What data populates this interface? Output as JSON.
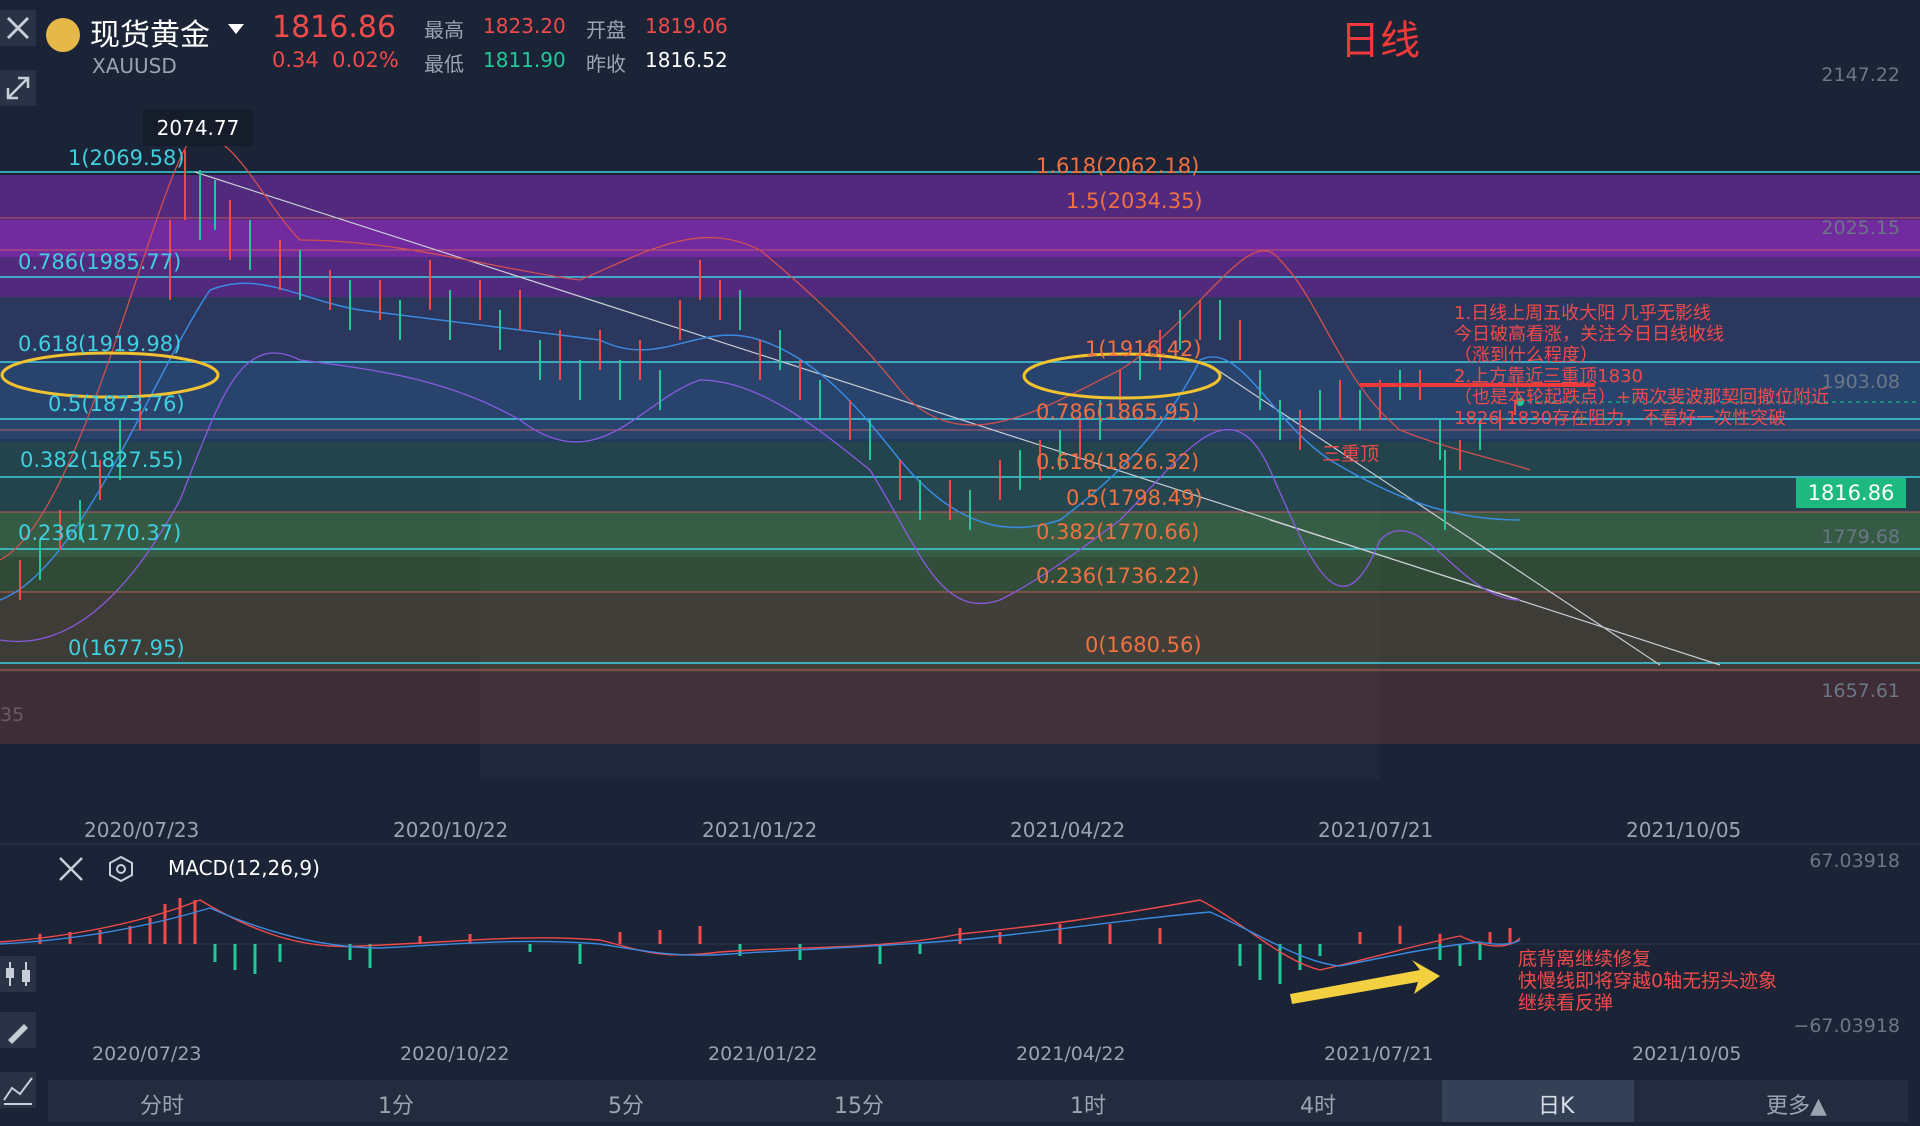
{
  "header": {
    "symbol_name": "现货黄金",
    "symbol_code": "XAUUSD",
    "last_price": "1816.86",
    "change": "0.34",
    "change_pct": "0.02%",
    "high_label": "最高",
    "high_value": "1823.20",
    "open_label": "开盘",
    "open_value": "1819.06",
    "low_label": "最低",
    "low_value": "1811.90",
    "prev_close_label": "昨收",
    "prev_close_value": "1816.52",
    "timeframe_title": "日线"
  },
  "price_axis": [
    "2147.22",
    "2025.15",
    "1903.08",
    "1779.68",
    "1657.61"
  ],
  "left_cut_label": "35",
  "high_tooltip": "2074.77",
  "current_price_tag": "1816.86",
  "fib_left": [
    {
      "label": "1(2069.58)"
    },
    {
      "label": "0.786(1985.77)"
    },
    {
      "label": "0.618(1919.98)"
    },
    {
      "label": "0.5(1873.76)"
    },
    {
      "label": "0.382(1827.55)"
    },
    {
      "label": "0.236(1770.37)"
    },
    {
      "label": "0(1677.95)"
    }
  ],
  "fib_right": [
    {
      "label": "1.618(2062.18)"
    },
    {
      "label": "1.5(2034.35)"
    },
    {
      "label": "1(1916.42)"
    },
    {
      "label": "0.786(1865.95)"
    },
    {
      "label": "0.618(1826.32)"
    },
    {
      "label": "0.5(1798.49)"
    },
    {
      "label": "0.382(1770.66)"
    },
    {
      "label": "0.236(1736.22)"
    },
    {
      "label": "0(1680.56)"
    }
  ],
  "triple_top_label": "三重顶",
  "annotation_main": [
    "1.日线上周五收大阳 几乎无影线",
    "今日破高看涨，关注今日日线收线",
    "（涨到什么程度）",
    "2.上方靠近三重顶1830",
    "（也是本轮起跌点）+两次斐波那契回撤位附近",
    "1826-1830存在阻力，不看好一次性突破"
  ],
  "dates": [
    "2020/07/23",
    "2020/10/22",
    "2021/01/22",
    "2021/04/22",
    "2021/07/21",
    "2021/10/05"
  ],
  "macd": {
    "title": "MACD(12,26,9)",
    "top": "67.03918",
    "bottom": "−67.03918",
    "annotation": [
      "底背离继续修复",
      "快慢线即将穿越0轴无拐头迹象",
      "继续看反弹"
    ]
  },
  "tabs": [
    "分时",
    "1分",
    "5分",
    "15分",
    "1时",
    "4时",
    "日K",
    "更多▲"
  ],
  "active_tab": "日K",
  "colors": {
    "up": "#f04a4a",
    "down": "#20c997",
    "fib": "#3fd0e0",
    "accent": "#1db980"
  }
}
